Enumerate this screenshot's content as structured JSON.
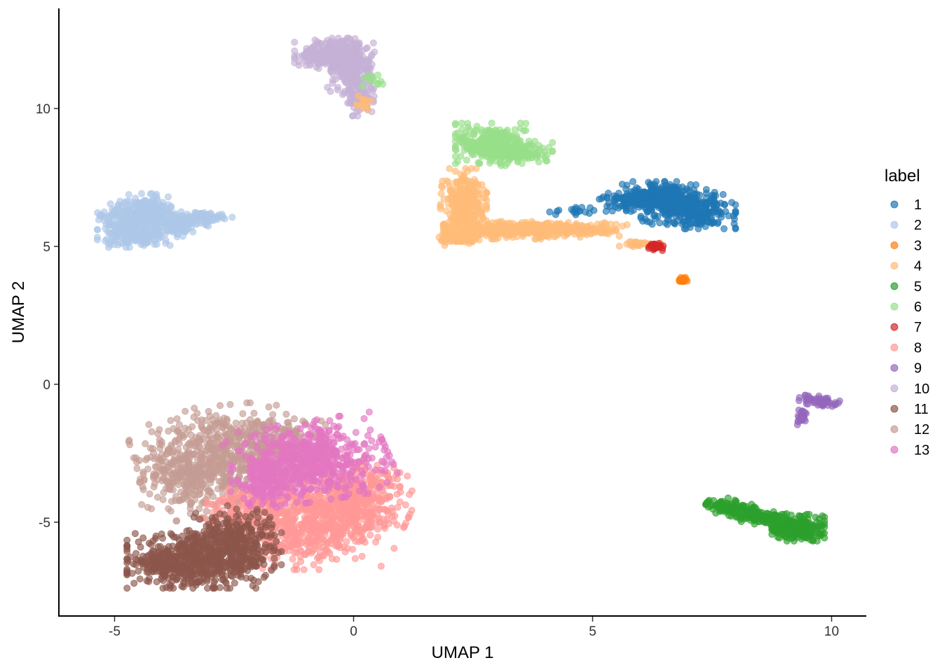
{
  "chart_data": {
    "type": "scatter",
    "xlabel": "UMAP 1",
    "ylabel": "UMAP 2",
    "xlim": [
      -6.2,
      10.7
    ],
    "ylim": [
      -8.4,
      13.6
    ],
    "x_ticks": [
      -5,
      0,
      5,
      10
    ],
    "y_ticks": [
      -5,
      0,
      5,
      10
    ],
    "x_tick_labels": [
      "-5",
      "0",
      "5",
      "10"
    ],
    "y_tick_labels": [
      "-5",
      "0",
      "5",
      "10"
    ],
    "grid": false,
    "legend": {
      "title": "label",
      "position": "right",
      "entries": [
        {
          "label": "1",
          "color": "#1f77b4"
        },
        {
          "label": "2",
          "color": "#aec7e8"
        },
        {
          "label": "3",
          "color": "#ff7f0e"
        },
        {
          "label": "4",
          "color": "#ffbb78"
        },
        {
          "label": "5",
          "color": "#2ca02c"
        },
        {
          "label": "6",
          "color": "#98df8a"
        },
        {
          "label": "7",
          "color": "#d62728"
        },
        {
          "label": "8",
          "color": "#ff9896"
        },
        {
          "label": "9",
          "color": "#9467bd"
        },
        {
          "label": "10",
          "color": "#c5b0d5"
        },
        {
          "label": "11",
          "color": "#8c564b"
        },
        {
          "label": "12",
          "color": "#c49c94"
        },
        {
          "label": "13",
          "color": "#e377c2"
        }
      ]
    },
    "clusters": [
      {
        "label": "12",
        "blobs": [
          {
            "cx": -2.9,
            "cy": -2.8,
            "sx": 0.75,
            "sy": 0.9,
            "rot": 10,
            "n": 520
          },
          {
            "cx": -1.8,
            "cy": -2.2,
            "sx": 0.55,
            "sy": 0.55,
            "rot": 0,
            "n": 200
          },
          {
            "cx": -3.6,
            "cy": -3.3,
            "sx": 0.4,
            "sy": 0.55,
            "rot": 0,
            "n": 140
          }
        ]
      },
      {
        "label": "8",
        "blobs": [
          {
            "cx": -0.5,
            "cy": -4.6,
            "sx": 0.75,
            "sy": 0.75,
            "rot": -15,
            "n": 620
          },
          {
            "cx": -1.6,
            "cy": -5.4,
            "sx": 0.6,
            "sy": 0.6,
            "rot": 0,
            "n": 280
          },
          {
            "cx": 0.2,
            "cy": -3.9,
            "sx": 0.35,
            "sy": 0.6,
            "rot": 0,
            "n": 180
          },
          {
            "cx": -2.4,
            "cy": -4.5,
            "sx": 0.35,
            "sy": 0.4,
            "rot": 0,
            "n": 100
          }
        ]
      },
      {
        "label": "13",
        "blobs": [
          {
            "cx": -0.9,
            "cy": -2.8,
            "sx": 0.75,
            "sy": 0.65,
            "rot": 15,
            "n": 560
          },
          {
            "cx": -1.8,
            "cy": -3.5,
            "sx": 0.35,
            "sy": 0.45,
            "rot": 0,
            "n": 140
          }
        ]
      },
      {
        "label": "11",
        "blobs": [
          {
            "cx": -3.2,
            "cy": -6.4,
            "sx": 0.7,
            "sy": 0.45,
            "rot": 0,
            "n": 560
          },
          {
            "cx": -2.5,
            "cy": -5.5,
            "sx": 0.45,
            "sy": 0.5,
            "rot": 0,
            "n": 220
          },
          {
            "cx": -3.9,
            "cy": -6.6,
            "sx": 0.3,
            "sy": 0.25,
            "rot": 0,
            "n": 100
          }
        ]
      },
      {
        "label": "2",
        "blobs": [
          {
            "cx": -4.7,
            "cy": 5.8,
            "sx": 0.3,
            "sy": 0.38,
            "rot": 0,
            "n": 240
          },
          {
            "cx": -4.3,
            "cy": 6.3,
            "sx": 0.22,
            "sy": 0.28,
            "rot": 0,
            "n": 120
          },
          {
            "cx": -3.8,
            "cy": 5.8,
            "sx": 0.25,
            "sy": 0.22,
            "rot": 0,
            "n": 110
          },
          {
            "cx": -3.2,
            "cy": 6.0,
            "sx": 0.3,
            "sy": 0.12,
            "rot": 0,
            "n": 90
          },
          {
            "cx": -4.5,
            "cy": 5.3,
            "sx": 0.3,
            "sy": 0.12,
            "rot": 0,
            "n": 60
          }
        ]
      },
      {
        "label": "10",
        "blobs": [
          {
            "cx": -0.4,
            "cy": 12.0,
            "sx": 0.38,
            "sy": 0.25,
            "rot": 0,
            "n": 260
          },
          {
            "cx": -0.1,
            "cy": 11.5,
            "sx": 0.22,
            "sy": 0.4,
            "rot": 0,
            "n": 150
          },
          {
            "cx": 0.1,
            "cy": 10.5,
            "sx": 0.15,
            "sy": 0.35,
            "rot": 0,
            "n": 90
          }
        ]
      },
      {
        "label": "6",
        "blobs": [
          {
            "cx": 2.9,
            "cy": 8.7,
            "sx": 0.35,
            "sy": 0.35,
            "rot": 0,
            "n": 300
          },
          {
            "cx": 3.5,
            "cy": 8.4,
            "sx": 0.3,
            "sy": 0.2,
            "rot": 0,
            "n": 110
          },
          {
            "cx": 0.4,
            "cy": 11.0,
            "sx": 0.12,
            "sy": 0.12,
            "rot": 0,
            "n": 12
          }
        ]
      },
      {
        "label": "4",
        "blobs": [
          {
            "cx": 2.3,
            "cy": 6.5,
            "sx": 0.22,
            "sy": 0.6,
            "rot": 0,
            "n": 340
          },
          {
            "cx": 3.2,
            "cy": 5.6,
            "sx": 0.6,
            "sy": 0.15,
            "rot": 0,
            "n": 230
          },
          {
            "cx": 4.4,
            "cy": 5.6,
            "sx": 0.6,
            "sy": 0.12,
            "rot": 0,
            "n": 190
          },
          {
            "cx": 2.2,
            "cy": 5.3,
            "sx": 0.2,
            "sy": 0.12,
            "rot": 0,
            "n": 80
          },
          {
            "cx": 6.0,
            "cy": 5.1,
            "sx": 0.2,
            "sy": 0.05,
            "rot": 0,
            "n": 30
          },
          {
            "cx": 0.2,
            "cy": 10.2,
            "sx": 0.1,
            "sy": 0.15,
            "rot": 0,
            "n": 14
          }
        ]
      },
      {
        "label": "1",
        "blobs": [
          {
            "cx": 6.5,
            "cy": 6.8,
            "sx": 0.4,
            "sy": 0.25,
            "rot": 0,
            "n": 240
          },
          {
            "cx": 7.0,
            "cy": 6.3,
            "sx": 0.45,
            "sy": 0.3,
            "rot": 0,
            "n": 280
          },
          {
            "cx": 5.8,
            "cy": 6.6,
            "sx": 0.3,
            "sy": 0.15,
            "rot": 0,
            "n": 90
          },
          {
            "cx": 4.8,
            "cy": 6.3,
            "sx": 0.35,
            "sy": 0.08,
            "rot": 0,
            "n": 20
          }
        ]
      },
      {
        "label": "7",
        "blobs": [
          {
            "cx": 6.3,
            "cy": 5.0,
            "sx": 0.08,
            "sy": 0.08,
            "rot": 0,
            "n": 36
          }
        ]
      },
      {
        "label": "3",
        "blobs": [
          {
            "cx": 6.9,
            "cy": 3.8,
            "sx": 0.05,
            "sy": 0.05,
            "rot": 0,
            "n": 22
          }
        ]
      },
      {
        "label": "9",
        "blobs": [
          {
            "cx": 9.7,
            "cy": -0.6,
            "sx": 0.2,
            "sy": 0.08,
            "rot": -20,
            "n": 60
          },
          {
            "cx": 9.4,
            "cy": -1.2,
            "sx": 0.06,
            "sy": 0.12,
            "rot": 0,
            "n": 30
          }
        ]
      },
      {
        "label": "5",
        "blobs": [
          {
            "cx": 9.3,
            "cy": -5.2,
            "sx": 0.25,
            "sy": 0.22,
            "rot": 0,
            "n": 240
          },
          {
            "cx": 8.4,
            "cy": -4.75,
            "sx": 0.5,
            "sy": 0.15,
            "rot": -25,
            "n": 180
          },
          {
            "cx": 7.8,
            "cy": -4.45,
            "sx": 0.2,
            "sy": 0.08,
            "rot": -20,
            "n": 50
          }
        ]
      }
    ]
  }
}
